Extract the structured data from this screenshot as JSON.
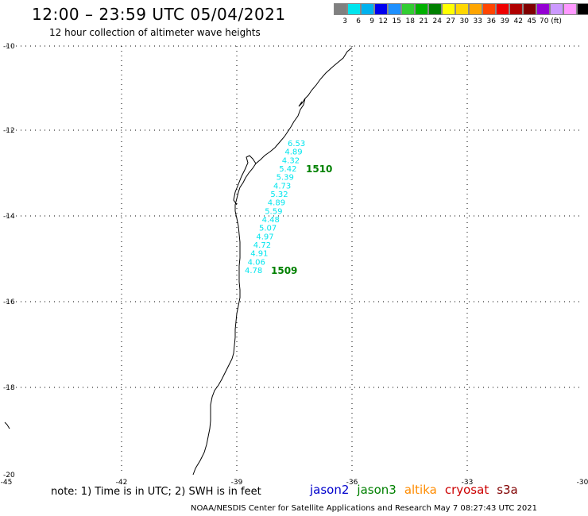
{
  "header": {
    "title": "12:00 – 23:59 UTC 05/04/2021",
    "subtitle": "12 hour collection of altimeter wave heights"
  },
  "scale": {
    "colors": [
      "#808080",
      "#00e5ee",
      "#00b2ee",
      "#0000ee",
      "#1e90ff",
      "#32cd32",
      "#00b000",
      "#008000",
      "#ffff00",
      "#ffd700",
      "#ffa500",
      "#ff4500",
      "#ee0000",
      "#b00000",
      "#800000",
      "#9400d3",
      "#cc99ff",
      "#ff99ff",
      "#000000"
    ],
    "labels": [
      "3",
      "6",
      "9",
      "12",
      "15",
      "18",
      "21",
      "24",
      "27",
      "30",
      "33",
      "36",
      "39",
      "42",
      "45",
      "70 (ft)"
    ]
  },
  "axes": {
    "lat_labels": [
      "-10",
      "-12",
      "-14",
      "-16",
      "-18",
      "-20"
    ],
    "lon_labels": [
      "-45",
      "-42",
      "-39",
      "-36",
      "-33",
      "-30"
    ]
  },
  "wave_heights": [
    "6.53",
    "4.89",
    "4.32",
    "5.42",
    "5.39",
    "4.73",
    "5.32",
    "4.89",
    "5.59",
    "4.48",
    "5.07",
    "4.97",
    "4.72",
    "4.91",
    "4.06",
    "4.78"
  ],
  "pass_labels": [
    "1510",
    "1509"
  ],
  "colors": {
    "wave_text": "#00e5ee",
    "pass_label": "#008000"
  },
  "footer": {
    "note": "note:  1) Time is in UTC;  2) SWH is in feet",
    "credit": "NOAA/NESDIS Center for Satellite Applications and Research     May  7 08:27:43 UTC 2021",
    "satellites": [
      {
        "name": "jason2",
        "color": "#0000cc"
      },
      {
        "name": "jason3",
        "color": "#008000"
      },
      {
        "name": "altika",
        "color": "#ff8c00"
      },
      {
        "name": "cryosat",
        "color": "#cc0000"
      },
      {
        "name": "s3a",
        "color": "#800000"
      }
    ]
  }
}
